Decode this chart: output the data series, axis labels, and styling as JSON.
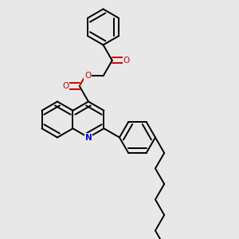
{
  "bg_color": "#e8e8e8",
  "bond_color": "#000000",
  "N_color": "#0000cc",
  "O_color": "#cc0000",
  "lw": 1.4,
  "dbo": 0.012,
  "figsize": [
    3.0,
    3.0
  ],
  "dpi": 100,
  "xlim": [
    0.0,
    1.0
  ],
  "ylim": [
    0.0,
    1.0
  ]
}
